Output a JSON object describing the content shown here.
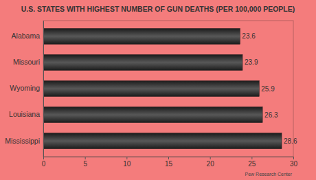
{
  "chart_data": {
    "type": "bar",
    "orientation": "horizontal",
    "title": "U.S. STATES WITH HIGHEST NUMBER OF GUN DEATHS (PER 100,000 PEOPLE)",
    "categories": [
      "Alabama",
      "Missouri",
      "Wyoming",
      "Louisiana",
      "Mississippi"
    ],
    "values": [
      23.6,
      23.9,
      25.9,
      26.3,
      28.6
    ],
    "color": "#1c1c1c",
    "xlim": [
      0,
      30
    ],
    "xticks": [
      0,
      5,
      10,
      15,
      20,
      25,
      30
    ],
    "grid": false,
    "data_labels": true,
    "annotations": [
      "Pew Research Center"
    ]
  }
}
